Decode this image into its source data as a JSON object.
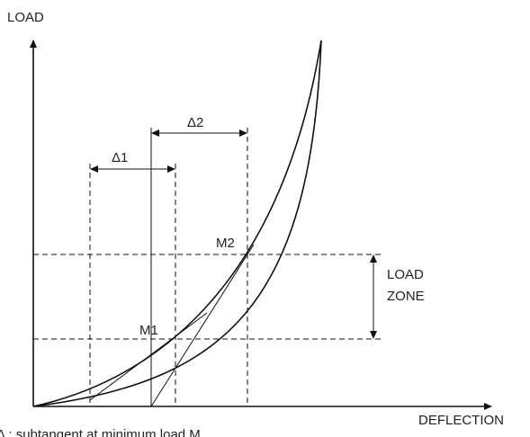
{
  "labels": {
    "y_axis": "LOAD",
    "x_axis": "DEFLECTION",
    "delta1": "Δ1",
    "delta2": "Δ2",
    "m1": "M1",
    "m2": "M2",
    "zone_line1": "LOAD",
    "zone_line2": "ZONE",
    "footnote": "Δ  : subtangent at minimum load M"
  }
}
